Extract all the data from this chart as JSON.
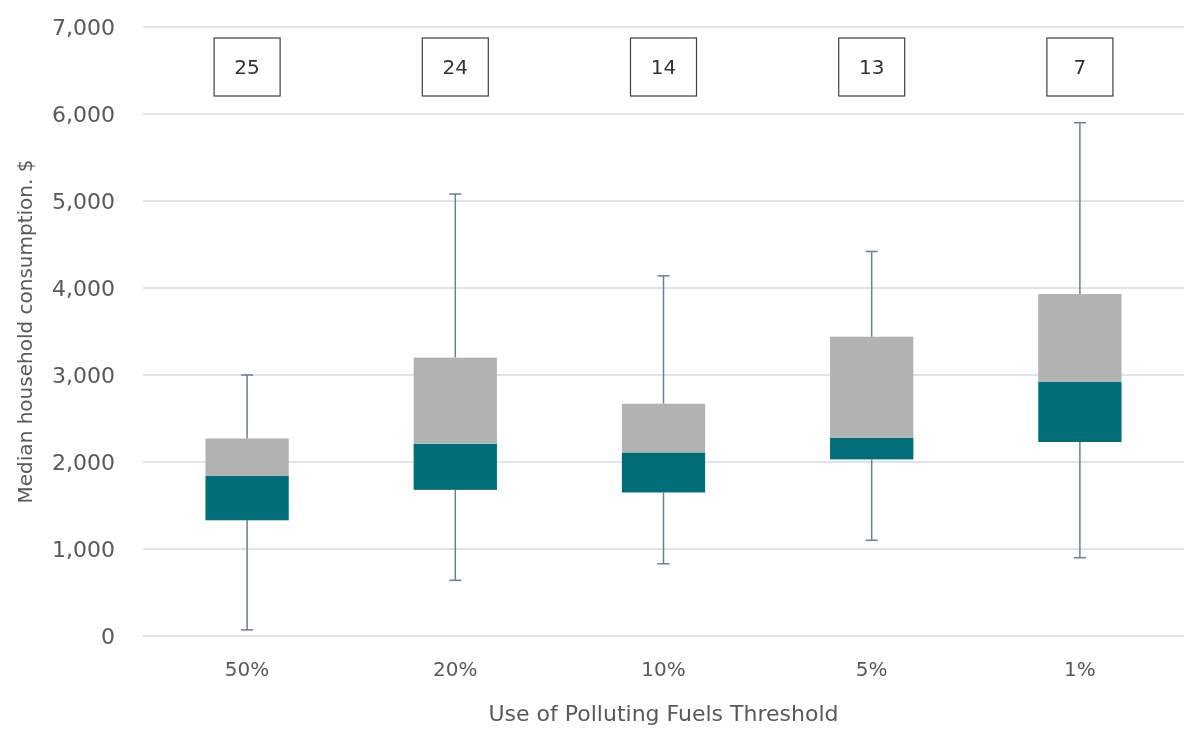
{
  "chart_data": {
    "type": "box",
    "xlabel": "Use of Polluting Fuels Threshold",
    "ylabel": "Median household consumption. $",
    "categories": [
      "50%",
      "20%",
      "10%",
      "5%",
      "1%"
    ],
    "series": [
      {
        "color": "#006e78",
        "boxes": [
          {
            "low": 70,
            "q1": 1330,
            "median": 1840,
            "q3": 2270,
            "high": 3000
          },
          {
            "low": 640,
            "q1": 1680,
            "median": 2210,
            "q3": 3200,
            "high": 5080
          },
          {
            "low": 830,
            "q1": 1650,
            "median": 2110,
            "q3": 2670,
            "high": 4140
          },
          {
            "low": 1100,
            "q1": 2030,
            "median": 2280,
            "q3": 3440,
            "high": 4420
          },
          {
            "low": 900,
            "q1": 2230,
            "median": 2920,
            "q3": 3930,
            "high": 5900
          }
        ]
      }
    ],
    "annotations": [
      "25",
      "24",
      "14",
      "13",
      "7"
    ],
    "ylim": [
      0,
      7000
    ],
    "yticks": [
      {
        "value": 0,
        "label": "0"
      },
      {
        "value": 1000,
        "label": "1,000"
      },
      {
        "value": 2000,
        "label": "2,000"
      },
      {
        "value": 3000,
        "label": "3,000"
      },
      {
        "value": 4000,
        "label": "4,000"
      },
      {
        "value": 5000,
        "label": "5,000"
      },
      {
        "value": 6000,
        "label": "6,000"
      },
      {
        "value": 7000,
        "label": "7,000"
      }
    ],
    "grid": "y"
  }
}
